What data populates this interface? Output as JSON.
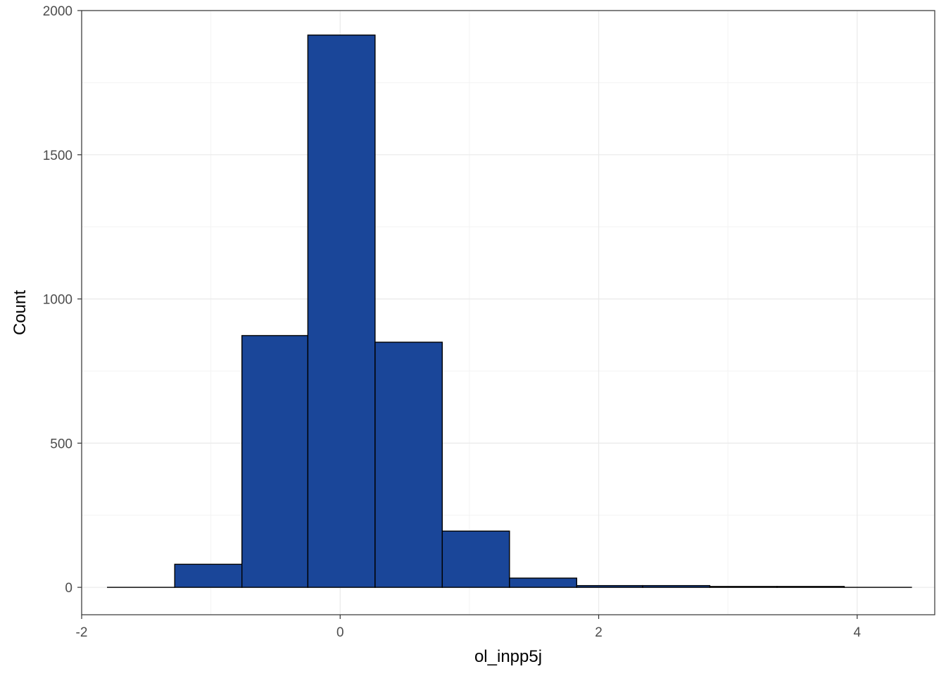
{
  "chart_data": {
    "type": "bar",
    "subtype": "histogram",
    "title": "",
    "xlabel": "ol_inpp5j",
    "ylabel": "Count",
    "xlim": [
      -2.0,
      4.6
    ],
    "ylim": [
      -95,
      2000
    ],
    "x_ticks": [
      -2,
      0,
      2,
      4
    ],
    "x_tick_labels": [
      "-2",
      "0",
      "2",
      "4"
    ],
    "y_ticks": [
      0,
      500,
      1000,
      1500,
      2000
    ],
    "y_tick_labels": [
      "0",
      "500",
      "1000",
      "1500",
      "2000"
    ],
    "grid": true,
    "legend": "none",
    "bins": [
      {
        "x0": -1.8,
        "x1": -1.28,
        "count": 0
      },
      {
        "x0": -1.28,
        "x1": -0.76,
        "count": 80
      },
      {
        "x0": -0.76,
        "x1": -0.25,
        "count": 873
      },
      {
        "x0": -0.25,
        "x1": 0.27,
        "count": 1915
      },
      {
        "x0": 0.27,
        "x1": 0.79,
        "count": 850
      },
      {
        "x0": 0.79,
        "x1": 1.31,
        "count": 195
      },
      {
        "x0": 1.31,
        "x1": 1.83,
        "count": 32
      },
      {
        "x0": 1.83,
        "x1": 2.34,
        "count": 6
      },
      {
        "x0": 2.34,
        "x1": 2.86,
        "count": 6
      },
      {
        "x0": 2.86,
        "x1": 3.38,
        "count": 3
      },
      {
        "x0": 3.38,
        "x1": 3.9,
        "count": 3
      },
      {
        "x0": 3.9,
        "x1": 4.42,
        "count": 0
      }
    ],
    "colors": {
      "bar_fill": "#1A4699",
      "bar_stroke": "#000000",
      "panel_border": "#333333",
      "major_grid": "#EBEBEB",
      "minor_grid": "#F3F3F3",
      "tick_label": "#4D4D4D"
    }
  }
}
